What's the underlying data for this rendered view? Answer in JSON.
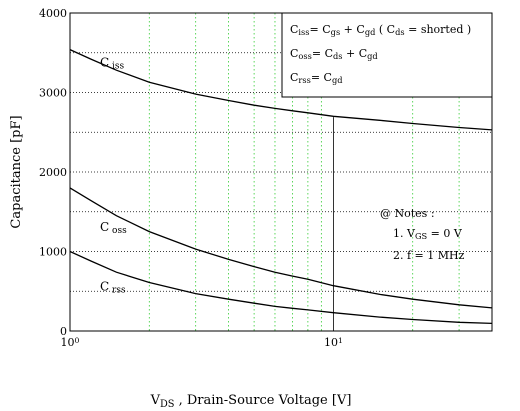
{
  "chart_data": {
    "type": "line",
    "x_scale": "log",
    "xlim": [
      1,
      40
    ],
    "ylim": [
      0,
      4000
    ],
    "x_ticks_major": [
      1,
      10
    ],
    "x_tick_labels": [
      "10",
      "10"
    ],
    "x_tick_exponents": [
      "0",
      "1"
    ],
    "x_grid_minor": [
      2,
      3,
      4,
      5,
      6,
      7,
      8,
      9,
      20,
      30,
      40
    ],
    "y_ticks": [
      0,
      1000,
      2000,
      3000,
      4000
    ],
    "y_tick_labels": [
      "0",
      "1000",
      "2000",
      "3000",
      "4000"
    ],
    "y_grid": [
      500,
      1000,
      1500,
      2000,
      2500,
      3000,
      3500
    ],
    "grid": true,
    "xlabel": "V",
    "xlabel_sub": "DS",
    "xlabel_rest": " , Drain-Source Voltage [V]",
    "ylabel": "Capacitance  [pF]",
    "marker_line_x": 10,
    "series": [
      {
        "name": "C",
        "name_sub": "iss",
        "x": [
          1,
          1.2,
          1.5,
          2,
          3,
          4,
          5,
          6,
          7,
          8,
          10,
          15,
          20,
          30,
          40
        ],
        "y": [
          3540,
          3420,
          3280,
          3130,
          2980,
          2900,
          2840,
          2800,
          2770,
          2745,
          2700,
          2650,
          2610,
          2560,
          2530
        ]
      },
      {
        "name": "C",
        "name_sub": "oss",
        "x": [
          1,
          1.2,
          1.5,
          2,
          3,
          4,
          5,
          6,
          7,
          8,
          10,
          15,
          20,
          30,
          40
        ],
        "y": [
          1800,
          1640,
          1450,
          1250,
          1030,
          900,
          810,
          740,
          690,
          650,
          570,
          460,
          400,
          330,
          290
        ]
      },
      {
        "name": "C",
        "name_sub": "rss",
        "x": [
          1,
          1.2,
          1.5,
          2,
          3,
          4,
          5,
          6,
          7,
          8,
          10,
          15,
          20,
          30,
          40
        ],
        "y": [
          1000,
          880,
          740,
          610,
          470,
          400,
          350,
          310,
          285,
          265,
          230,
          175,
          145,
          110,
          95
        ]
      }
    ],
    "legend": {
      "placement": "top-right",
      "rows": [
        [
          [
            "C",
            ""
          ],
          [
            "iss",
            "sub"
          ],
          [
            "= C",
            ""
          ],
          [
            "gs",
            "sub"
          ],
          [
            " + C",
            ""
          ],
          [
            "gd",
            "sub"
          ],
          [
            " ( C",
            ""
          ],
          [
            "ds",
            "sub"
          ],
          [
            " = shorted )",
            ""
          ]
        ],
        [
          [
            "C",
            ""
          ],
          [
            "oss",
            "sub"
          ],
          [
            "= C",
            ""
          ],
          [
            "ds",
            "sub"
          ],
          [
            " + C",
            ""
          ],
          [
            "gd",
            "sub"
          ]
        ],
        [
          [
            "C",
            ""
          ],
          [
            "rss",
            "sub"
          ],
          [
            "= C",
            ""
          ],
          [
            "gd",
            "sub"
          ]
        ]
      ]
    },
    "notes": {
      "title": "@ Notes :",
      "lines": [
        [
          [
            "1. V",
            ""
          ],
          [
            "GS",
            "sub"
          ],
          [
            " = 0 V",
            ""
          ]
        ],
        [
          [
            "2. f = 1 MHz",
            ""
          ]
        ]
      ]
    }
  }
}
